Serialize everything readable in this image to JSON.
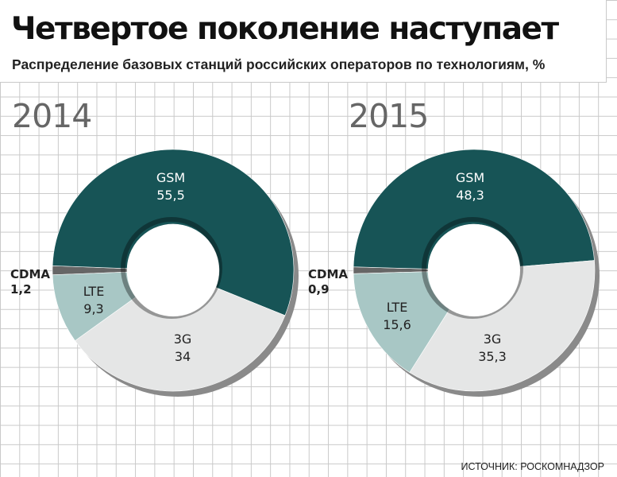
{
  "title": "Четвертое поколение наступает",
  "subtitle": "Распределение базовых станций российских операторов по технологиям, %",
  "source": "ИСТОЧНИК: РОСКОМНАДЗОР",
  "colors": {
    "GSM": "#175456",
    "3G": "#e5e6e6",
    "LTE": "#a8c7c5",
    "CDMA": "#666666",
    "shadow": "#8a8a8a"
  },
  "chart_data": [
    {
      "type": "pie",
      "title": "2014",
      "categories": [
        "GSM",
        "3G",
        "LTE",
        "CDMA"
      ],
      "values": [
        55.5,
        34,
        9.3,
        1.2
      ],
      "value_labels": [
        "55,5",
        "34",
        "9,3",
        "1,2"
      ]
    },
    {
      "type": "pie",
      "title": "2015",
      "categories": [
        "GSM",
        "3G",
        "LTE",
        "CDMA"
      ],
      "values": [
        48.3,
        35.3,
        15.6,
        0.9
      ],
      "value_labels": [
        "48,3",
        "35,3",
        "15,6",
        "0,9"
      ]
    }
  ]
}
